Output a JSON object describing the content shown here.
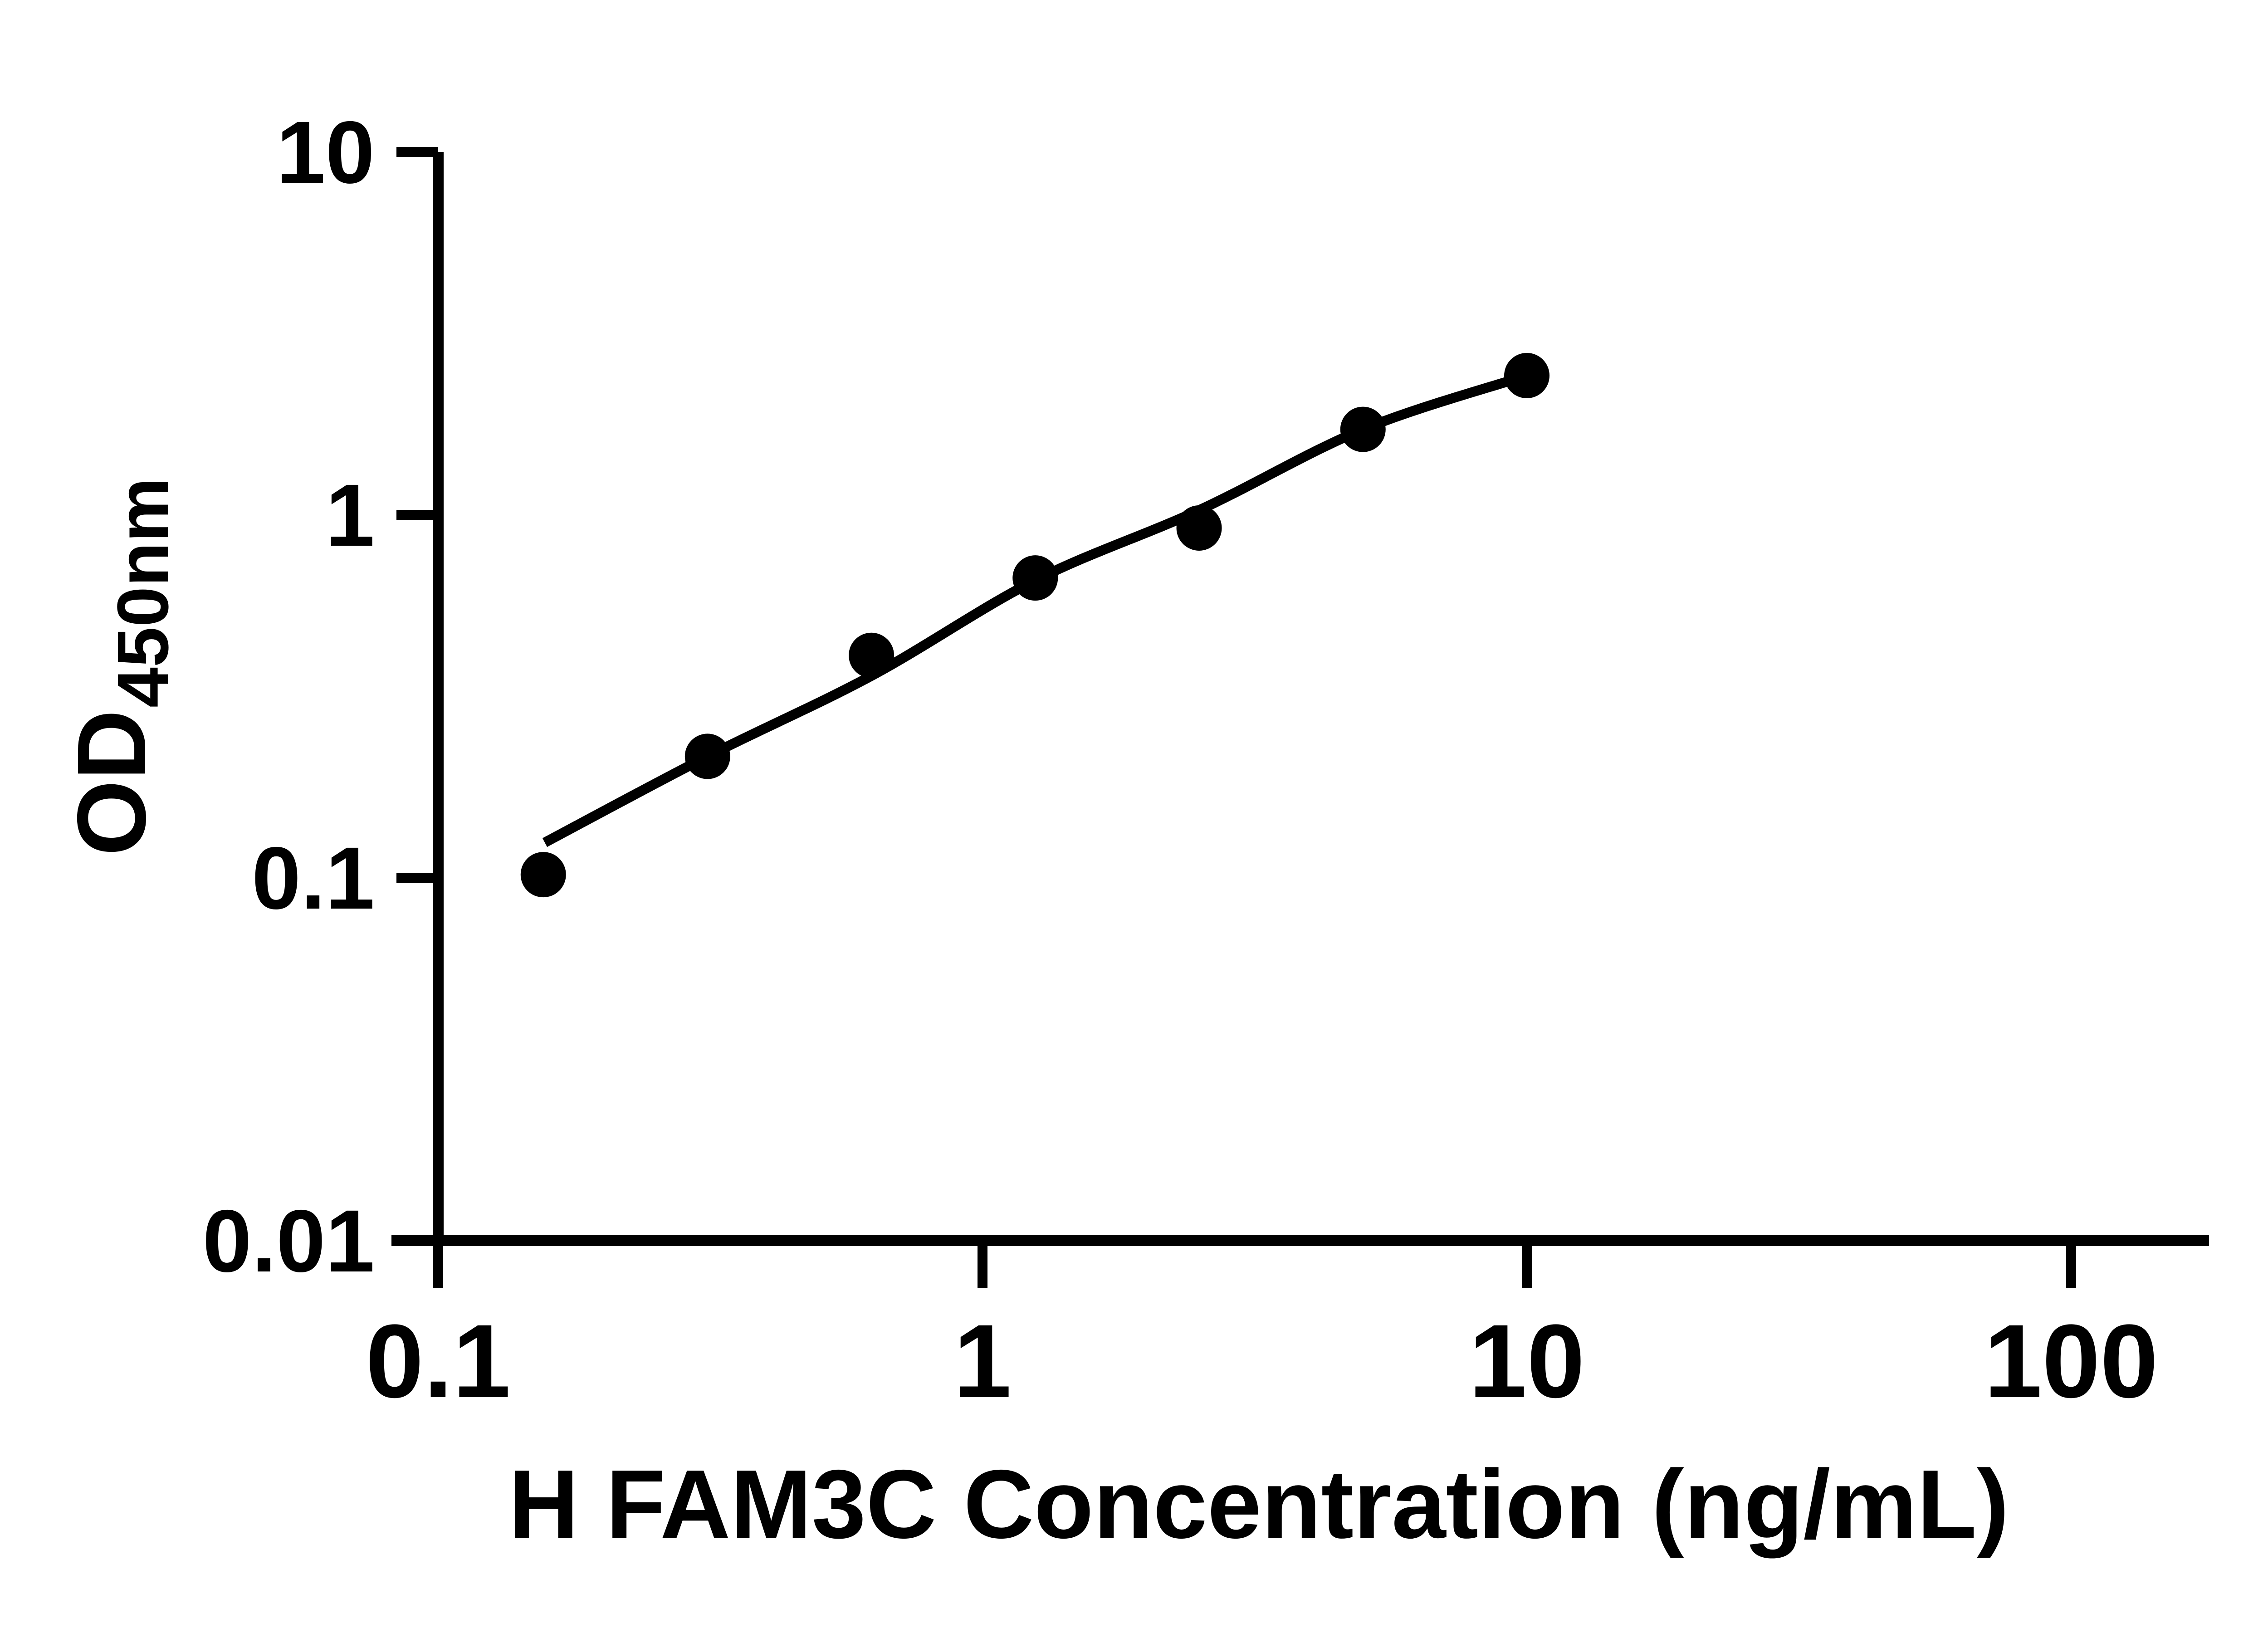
{
  "figure": {
    "background_color": "#ffffff",
    "ink_color": "#000000"
  },
  "chart_data": {
    "type": "scatter",
    "title": "",
    "xlabel": "H FAM3C Concentration (ng/mL)",
    "ylabel_main": "OD",
    "ylabel_sub": "450nm",
    "x_scale": "log10",
    "y_scale": "log10",
    "xlim": [
      0.1,
      100
    ],
    "ylim": [
      0.01,
      10
    ],
    "grid": "off",
    "legend": "none",
    "x_ticks": [
      {
        "value": 0.1,
        "label": "0.1"
      },
      {
        "value": 1,
        "label": "1"
      },
      {
        "value": 10,
        "label": "10"
      },
      {
        "value": 100,
        "label": "100"
      }
    ],
    "y_ticks": [
      {
        "value": 10,
        "label": "10"
      },
      {
        "value": 1,
        "label": "1"
      },
      {
        "value": 0.1,
        "label": "0.1"
      },
      {
        "value": 0.01,
        "label": "0.01"
      }
    ],
    "series": [
      {
        "name": "standard-curve-points",
        "marker": "filled-circle",
        "color": "#000000",
        "points": [
          {
            "x": 0.156,
            "y": 0.102
          },
          {
            "x": 0.3125,
            "y": 0.216
          },
          {
            "x": 0.625,
            "y": 0.41
          },
          {
            "x": 1.25,
            "y": 0.67
          },
          {
            "x": 2.5,
            "y": 0.92
          },
          {
            "x": 5,
            "y": 1.72
          },
          {
            "x": 10,
            "y": 2.42
          }
        ]
      }
    ],
    "fit_curve": {
      "name": "four-parameter-fit-line",
      "color": "#000000",
      "points": [
        {
          "x": 0.157,
          "y": 0.125
        },
        {
          "x": 0.3125,
          "y": 0.216
        },
        {
          "x": 0.625,
          "y": 0.36
        },
        {
          "x": 1.25,
          "y": 0.66
        },
        {
          "x": 2.5,
          "y": 1.03
        },
        {
          "x": 5,
          "y": 1.72
        },
        {
          "x": 10,
          "y": 2.42
        }
      ]
    }
  }
}
